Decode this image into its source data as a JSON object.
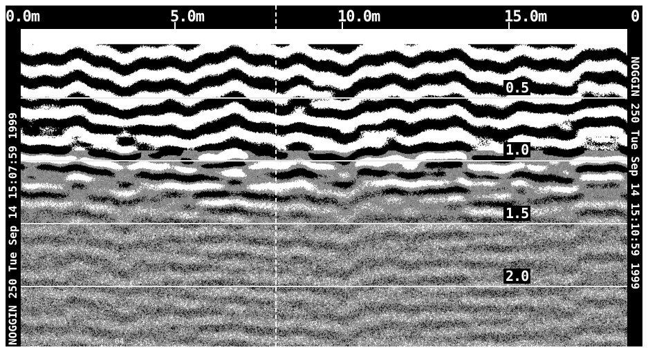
{
  "distance_axis": {
    "unit": "m",
    "labels": [
      "0.0m",
      "5.0m",
      "10.0m",
      "15.0m",
      "0"
    ]
  },
  "depth_axis": {
    "labels": [
      "0.5",
      "1.0",
      "1.5",
      "2.0"
    ]
  },
  "left_annotation": "NOGGIN 250 Tue Sep 14 15:07:59 1999",
  "right_annotation": "NOGGIN 250 Tue Sep 14 15:10:59 1999",
  "trace_marker": "04",
  "colors": {
    "background": "#000000",
    "signal": "#ffffff",
    "noise": "#8a8a8a"
  }
}
